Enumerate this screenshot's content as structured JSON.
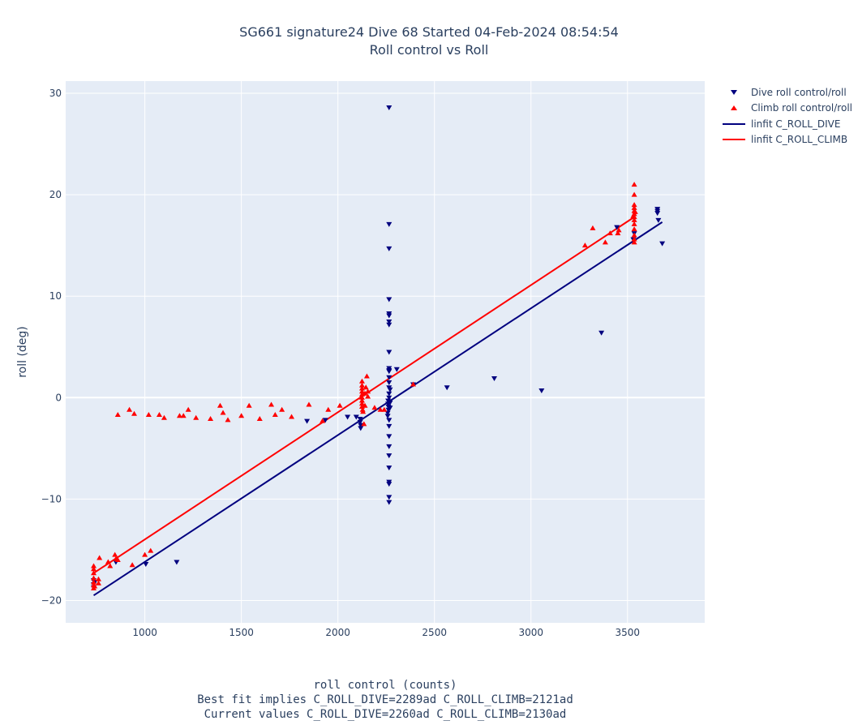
{
  "title_line1": "SG661 signature24 Dive 68 Started 04-Feb-2024 08:54:54",
  "title_line2": "Roll control vs Roll",
  "xlabel_lines": [
    "roll control (counts)",
    "Best fit implies C_ROLL_DIVE=2289ad C_ROLL_CLIMB=2121ad",
    "Current values C_ROLL_DIVE=2260ad C_ROLL_CLIMB=2130ad"
  ],
  "ylabel": "roll (deg)",
  "colors": {
    "plot_bg": "#e5ecf6",
    "dive": "#00007f",
    "climb": "#ff0000",
    "grid": "#ffffff"
  },
  "chart_data": {
    "type": "scatter",
    "xlim": [
      590,
      3900
    ],
    "ylim": [
      -22.2,
      31.2
    ],
    "x_ticks": [
      1000,
      1500,
      2000,
      2500,
      3000,
      3500
    ],
    "y_ticks": [
      -20,
      -10,
      0,
      10,
      20,
      30
    ],
    "grid": true,
    "legend_position": "top-right",
    "series": [
      {
        "name": "Dive roll control/roll",
        "marker": "triangle-down",
        "color": "#00007f",
        "points": [
          [
            2265,
            28.6
          ],
          [
            2265,
            17.1
          ],
          [
            2265,
            14.7
          ],
          [
            2265,
            9.7
          ],
          [
            2265,
            8.3
          ],
          [
            2265,
            8.1
          ],
          [
            2265,
            7.5
          ],
          [
            2265,
            7.2
          ],
          [
            2265,
            4.5
          ],
          [
            2265,
            2.9
          ],
          [
            2265,
            2.7
          ],
          [
            2265,
            2.6
          ],
          [
            2265,
            2.0
          ],
          [
            2265,
            1.5
          ],
          [
            2265,
            1.0
          ],
          [
            2265,
            0.4
          ],
          [
            2265,
            0.0
          ],
          [
            2260,
            -0.3
          ],
          [
            2260,
            -0.6
          ],
          [
            2262,
            -0.9
          ],
          [
            2262,
            -1.2
          ],
          [
            2258,
            -1.5
          ],
          [
            2258,
            -1.8
          ],
          [
            2265,
            -2.2
          ],
          [
            2265,
            -2.8
          ],
          [
            2265,
            -3.8
          ],
          [
            2265,
            -4.8
          ],
          [
            2265,
            -5.7
          ],
          [
            2265,
            -6.9
          ],
          [
            2265,
            -8.3
          ],
          [
            2265,
            -8.5
          ],
          [
            2265,
            -9.8
          ],
          [
            2265,
            -10.3
          ],
          [
            2115,
            -2.1
          ],
          [
            2115,
            -2.4
          ],
          [
            2118,
            -2.7
          ],
          [
            2118,
            -3.0
          ],
          [
            2095,
            -1.9
          ],
          [
            2050,
            -1.9
          ],
          [
            1840,
            -2.3
          ],
          [
            1935,
            -2.2
          ],
          [
            2305,
            2.8
          ],
          [
            2390,
            1.3
          ],
          [
            2565,
            1.0
          ],
          [
            2810,
            1.9
          ],
          [
            3055,
            0.7
          ],
          [
            3365,
            6.4
          ],
          [
            3445,
            16.8
          ],
          [
            3530,
            15.6
          ],
          [
            3535,
            16.2
          ],
          [
            3655,
            18.6
          ],
          [
            3655,
            18.4
          ],
          [
            3655,
            18.2
          ],
          [
            3660,
            17.5
          ],
          [
            3680,
            15.2
          ],
          [
            735,
            -18.0
          ],
          [
            735,
            -18.4
          ],
          [
            735,
            -18.7
          ],
          [
            740,
            -18.2
          ],
          [
            850,
            -16.2
          ],
          [
            1005,
            -16.4
          ],
          [
            1165,
            -16.2
          ],
          [
            2270,
            -0.5
          ],
          [
            2270,
            -1.0
          ],
          [
            2270,
            0.8
          ]
        ]
      },
      {
        "name": "Climb roll control/roll",
        "marker": "triangle-up",
        "color": "#ff0000",
        "points": [
          [
            735,
            -16.6
          ],
          [
            735,
            -16.9
          ],
          [
            735,
            -17.3
          ],
          [
            735,
            -17.8
          ],
          [
            735,
            -18.2
          ],
          [
            735,
            -18.5
          ],
          [
            735,
            -18.8
          ],
          [
            740,
            -18.6
          ],
          [
            760,
            -17.9
          ],
          [
            760,
            -18.3
          ],
          [
            765,
            -15.8
          ],
          [
            810,
            -16.2
          ],
          [
            820,
            -16.6
          ],
          [
            845,
            -15.5
          ],
          [
            850,
            -15.9
          ],
          [
            860,
            -16.0
          ],
          [
            860,
            -1.7
          ],
          [
            920,
            -1.2
          ],
          [
            935,
            -16.5
          ],
          [
            945,
            -1.6
          ],
          [
            1000,
            -15.5
          ],
          [
            1020,
            -1.7
          ],
          [
            1030,
            -15.1
          ],
          [
            1075,
            -1.7
          ],
          [
            1100,
            -2.0
          ],
          [
            1180,
            -1.8
          ],
          [
            1200,
            -1.8
          ],
          [
            1225,
            -1.2
          ],
          [
            1265,
            -2.0
          ],
          [
            1340,
            -2.1
          ],
          [
            1390,
            -0.8
          ],
          [
            1405,
            -1.5
          ],
          [
            1430,
            -2.2
          ],
          [
            1500,
            -1.8
          ],
          [
            1540,
            -0.8
          ],
          [
            1595,
            -2.1
          ],
          [
            1655,
            -0.7
          ],
          [
            1675,
            -1.7
          ],
          [
            1710,
            -1.2
          ],
          [
            1760,
            -1.9
          ],
          [
            1850,
            -0.7
          ],
          [
            1920,
            -2.3
          ],
          [
            1950,
            -1.2
          ],
          [
            2010,
            -0.8
          ],
          [
            2125,
            1.6
          ],
          [
            2125,
            1.2
          ],
          [
            2125,
            0.9
          ],
          [
            2125,
            0.6
          ],
          [
            2125,
            0.3
          ],
          [
            2125,
            0.0
          ],
          [
            2125,
            -0.3
          ],
          [
            2125,
            -0.6
          ],
          [
            2125,
            -0.9
          ],
          [
            2128,
            -1.2
          ],
          [
            2130,
            -1.4
          ],
          [
            2135,
            -2.6
          ],
          [
            2140,
            0.4
          ],
          [
            2145,
            1.0
          ],
          [
            2150,
            2.1
          ],
          [
            2155,
            0.6
          ],
          [
            2155,
            0.1
          ],
          [
            2140,
            -0.8
          ],
          [
            2190,
            -1.0
          ],
          [
            2220,
            -1.2
          ],
          [
            2240,
            -1.2
          ],
          [
            2390,
            1.3
          ],
          [
            3280,
            15.0
          ],
          [
            3320,
            16.7
          ],
          [
            3385,
            15.3
          ],
          [
            3410,
            16.2
          ],
          [
            3450,
            16.2
          ],
          [
            3455,
            16.5
          ],
          [
            3535,
            21.0
          ],
          [
            3535,
            20.0
          ],
          [
            3535,
            19.0
          ],
          [
            3535,
            18.7
          ],
          [
            3535,
            18.4
          ],
          [
            3535,
            18.1
          ],
          [
            3535,
            17.8
          ],
          [
            3535,
            17.5
          ],
          [
            3535,
            17.1
          ],
          [
            3535,
            16.6
          ],
          [
            3535,
            16.0
          ],
          [
            3535,
            15.6
          ],
          [
            3535,
            15.3
          ],
          [
            3530,
            17.9
          ],
          [
            3540,
            18.3
          ]
        ]
      },
      {
        "name": "linfit C_ROLL_DIVE",
        "type": "line",
        "color": "#00007f",
        "x": [
          735,
          3680
        ],
        "y": [
          -19.5,
          17.3
        ]
      },
      {
        "name": "linfit C_ROLL_CLIMB",
        "type": "line",
        "color": "#ff0000",
        "x": [
          735,
          3535
        ],
        "y": [
          -17.3,
          17.8
        ]
      }
    ]
  }
}
